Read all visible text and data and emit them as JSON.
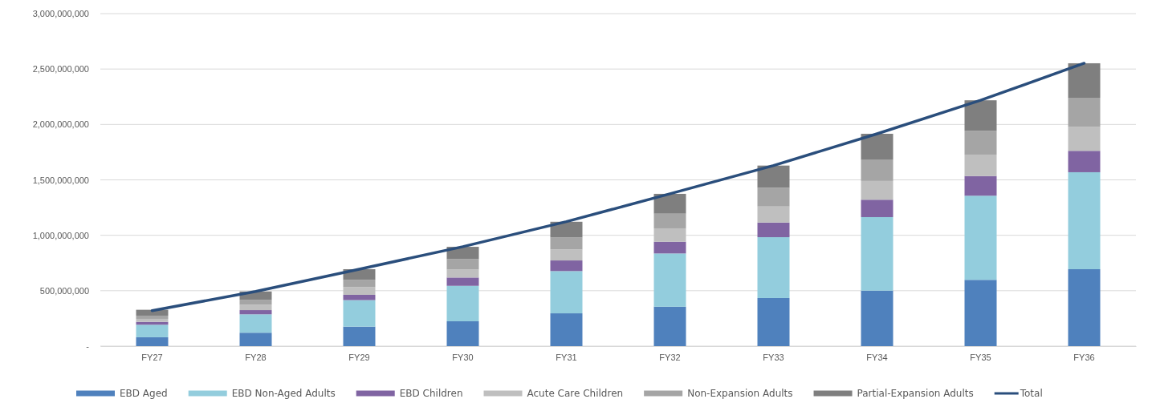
{
  "chart_data": {
    "type": "bar",
    "stacked": true,
    "categories": [
      "FY27",
      "FY28",
      "FY29",
      "FY30",
      "FY31",
      "FY32",
      "FY33",
      "FY34",
      "FY35",
      "FY36"
    ],
    "series": [
      {
        "name": "EBD Aged",
        "color": "#4f81bd",
        "values": [
          80000000,
          121000000,
          176000000,
          224000000,
          296000000,
          356000000,
          434000000,
          501000000,
          598000000,
          694000000
        ]
      },
      {
        "name": "EBD Non-Aged Adults",
        "color": "#93cddd",
        "values": [
          113000000,
          166000000,
          239000000,
          320000000,
          381000000,
          480000000,
          549000000,
          663000000,
          759000000,
          875000000
        ]
      },
      {
        "name": "EBD Children",
        "color": "#8064a2",
        "values": [
          26000000,
          38000000,
          48000000,
          75000000,
          96000000,
          106000000,
          132000000,
          157000000,
          178000000,
          193000000
        ]
      },
      {
        "name": "Acute Care Children",
        "color": "#bfbfbf",
        "values": [
          27000000,
          48000000,
          70000000,
          72000000,
          99000000,
          121000000,
          145000000,
          169000000,
          193000000,
          217000000
        ]
      },
      {
        "name": "Non-Expansion Adults",
        "color": "#a5a5a5",
        "values": [
          29000000,
          43000000,
          65000000,
          94000000,
          108000000,
          132000000,
          169000000,
          190000000,
          215000000,
          262000000
        ]
      },
      {
        "name": "Partial-Expansion Adults",
        "color": "#7f7f7f",
        "values": [
          53000000,
          77000000,
          96000000,
          111000000,
          142000000,
          179000000,
          200000000,
          236000000,
          275000000,
          311000000
        ]
      },
      {
        "name": "Total",
        "type": "line",
        "color": "#2a4e7c",
        "values": [
          320000000,
          493000000,
          694000000,
          897000000,
          1123000000,
          1374000000,
          1629000000,
          1916000000,
          2218000000,
          2552000000
        ]
      }
    ],
    "ylim": [
      0,
      3000000000
    ],
    "yticks": [
      {
        "value": 0,
        "label": "-"
      },
      {
        "value": 500000000,
        "label": "500,000,000"
      },
      {
        "value": 1000000000,
        "label": "1,000,000,000"
      },
      {
        "value": 1500000000,
        "label": "1,500,000,000"
      },
      {
        "value": 2000000000,
        "label": "2,000,000,000"
      },
      {
        "value": 2500000000,
        "label": "2,500,000,000"
      },
      {
        "value": 3000000000,
        "label": "3,000,000,000"
      }
    ],
    "grid": "y",
    "legend": "bottom",
    "marker": "none",
    "line_style": "solid"
  }
}
